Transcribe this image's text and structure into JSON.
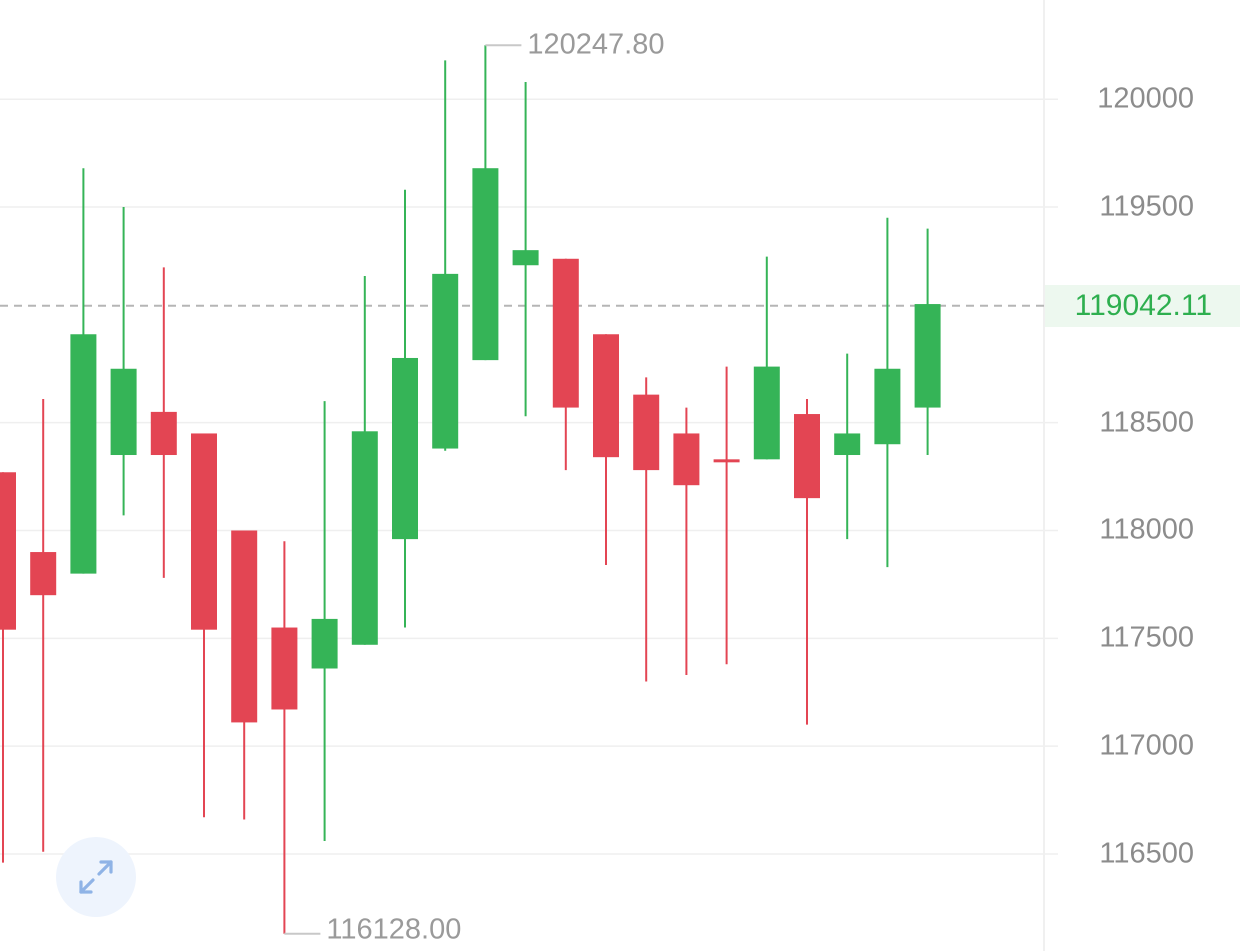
{
  "chart_data": {
    "type": "candlestick",
    "y_ticks": [
      120000,
      119500,
      118500,
      118000,
      117500,
      117000,
      116500
    ],
    "y_tick_labels": [
      "120000",
      "119500",
      "118500",
      "118000",
      "117500",
      "117000",
      "116500"
    ],
    "ylim": [
      116050,
      120460
    ],
    "grid": true,
    "current_price": 119042.11,
    "current_price_label": "119042.11",
    "high_label": "120247.80",
    "low_label": "116128.00",
    "candles": [
      {
        "open": 118270,
        "close": 117540,
        "high": 118270,
        "low": 116460
      },
      {
        "open": 117900,
        "close": 117700,
        "high": 118610,
        "low": 116510
      },
      {
        "open": 117800,
        "close": 118910,
        "high": 119680,
        "low": 117800
      },
      {
        "open": 118350,
        "close": 118750,
        "high": 119500,
        "low": 118070
      },
      {
        "open": 118550,
        "close": 118350,
        "high": 119220,
        "low": 117780
      },
      {
        "open": 118450,
        "close": 117540,
        "high": 118450,
        "low": 116670
      },
      {
        "open": 118000,
        "close": 117110,
        "high": 118000,
        "low": 116660
      },
      {
        "open": 117550,
        "close": 117170,
        "high": 117950,
        "low": 116130
      },
      {
        "open": 117360,
        "close": 117590,
        "high": 118600,
        "low": 116560
      },
      {
        "open": 117470,
        "close": 118460,
        "high": 119180,
        "low": 117470
      },
      {
        "open": 117960,
        "close": 118800,
        "high": 119580,
        "low": 117550
      },
      {
        "open": 118380,
        "close": 119190,
        "high": 120180,
        "low": 118370
      },
      {
        "open": 118790,
        "close": 119680,
        "high": 120250,
        "low": 118790
      },
      {
        "open": 119230,
        "close": 119300,
        "high": 120080,
        "low": 118530
      },
      {
        "open": 119260,
        "close": 118570,
        "high": 119260,
        "low": 118280
      },
      {
        "open": 118910,
        "close": 118340,
        "high": 118910,
        "low": 117840
      },
      {
        "open": 118630,
        "close": 118280,
        "high": 118710,
        "low": 117300
      },
      {
        "open": 118450,
        "close": 118210,
        "high": 118570,
        "low": 117330
      },
      {
        "open": 118330,
        "close": 118320,
        "high": 118760,
        "low": 117380
      },
      {
        "open": 118330,
        "close": 118760,
        "high": 119270,
        "low": 118330
      },
      {
        "open": 118540,
        "close": 118150,
        "high": 118610,
        "low": 117100
      },
      {
        "open": 118350,
        "close": 118450,
        "high": 118820,
        "low": 117960
      },
      {
        "open": 118400,
        "close": 118750,
        "high": 119450,
        "low": 117830
      },
      {
        "open": 118570,
        "close": 119050,
        "high": 119400,
        "low": 118350
      }
    ]
  },
  "colors": {
    "up": "#35b457",
    "down": "#e34553",
    "grid": "#efefef",
    "axis_label": "#8c8c8c",
    "current_line": "#b5b5b5",
    "current_text": "#2eaf4f",
    "current_bg": "#edf8ef"
  },
  "controls": {
    "expand_icon": "expand-arrows-icon"
  }
}
